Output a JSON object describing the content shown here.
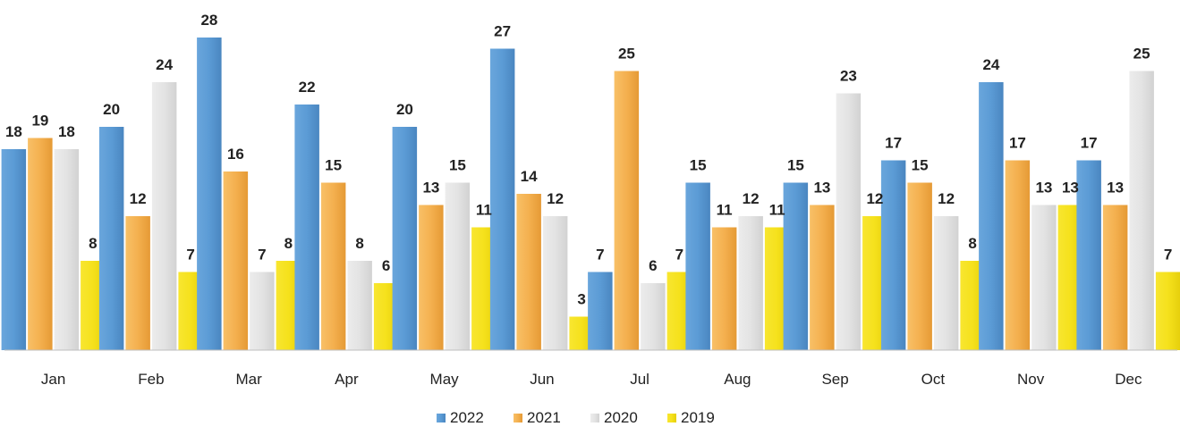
{
  "chart_data": {
    "type": "bar",
    "title": "",
    "xlabel": "",
    "ylabel": "",
    "ylim": [
      0,
      28
    ],
    "grid": false,
    "legend_position": "bottom",
    "categories": [
      "Jan",
      "Feb",
      "Mar",
      "Apr",
      "May",
      "Jun",
      "Jul",
      "Aug",
      "Sep",
      "Oct",
      "Nov",
      "Dec"
    ],
    "series": [
      {
        "name": "2022",
        "color": "#5b9bd5",
        "values": [
          18,
          20,
          28,
          22,
          20,
          27,
          7,
          15,
          15,
          17,
          24,
          17
        ]
      },
      {
        "name": "2021",
        "color": "#f4b04f",
        "values": [
          19,
          12,
          16,
          15,
          13,
          14,
          25,
          11,
          13,
          15,
          17,
          13
        ]
      },
      {
        "name": "2020",
        "color": "#e3e3e3",
        "values": [
          18,
          24,
          7,
          8,
          15,
          12,
          6,
          12,
          23,
          12,
          13,
          25
        ]
      },
      {
        "name": "2019",
        "color": "#f5e11c",
        "values": [
          8,
          7,
          8,
          6,
          11,
          3,
          7,
          11,
          12,
          8,
          13,
          7
        ]
      }
    ]
  }
}
